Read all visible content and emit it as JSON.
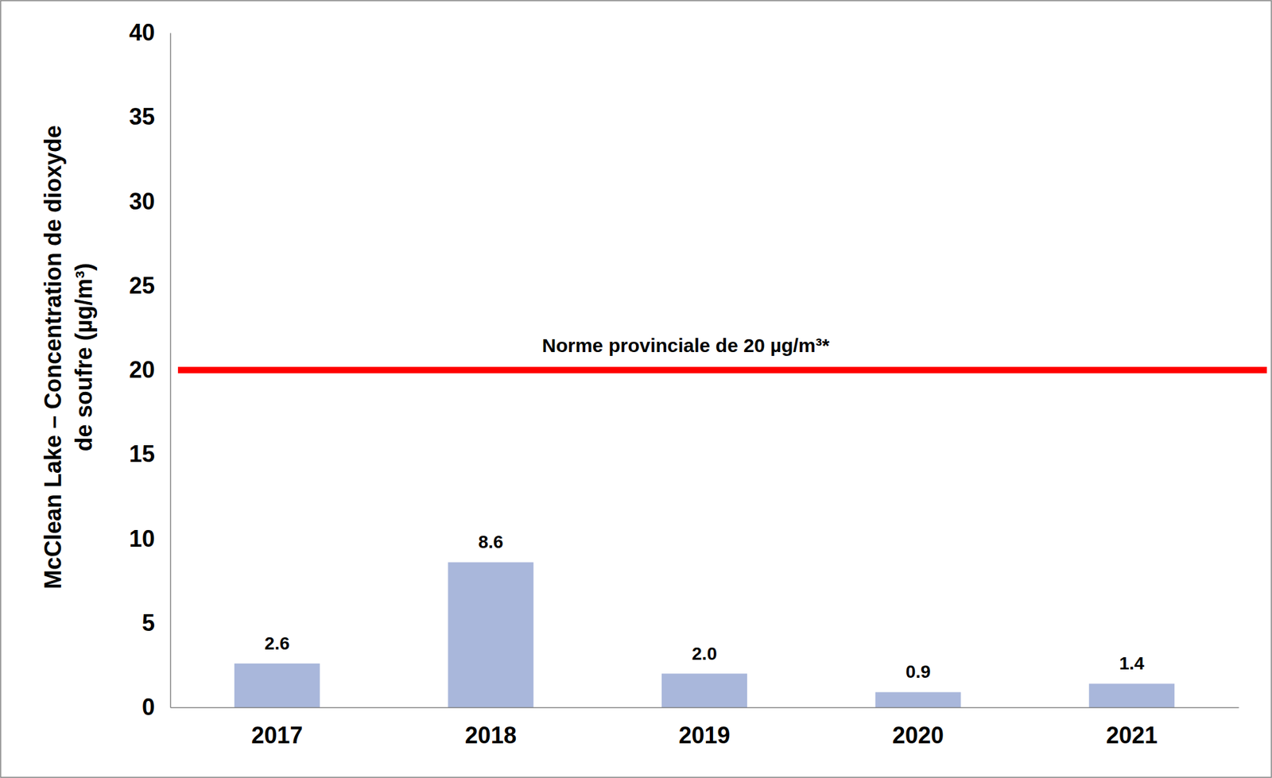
{
  "chart_data": {
    "type": "bar",
    "y_label": [
      "McClean Lake – Concentration de dioxyde",
      "de soufre (µg/m³)"
    ],
    "categories": [
      "2017",
      "2018",
      "2019",
      "2020",
      "2021"
    ],
    "values": [
      2.6,
      8.6,
      2.0,
      0.9,
      1.4
    ],
    "value_labels": [
      "2.6",
      "8.6",
      "2.0",
      "0.9",
      "1.4"
    ],
    "color": "#a9b7db",
    "data_labels": true,
    "grid": false,
    "ylim": [
      0,
      40
    ],
    "yticks": [
      0,
      5,
      10,
      15,
      20,
      25,
      30,
      35,
      40
    ],
    "annotations": [
      {
        "text": "Norme provinciale de 20 µg/m³*",
        "y": 20,
        "color": "#ff0000"
      }
    ]
  }
}
